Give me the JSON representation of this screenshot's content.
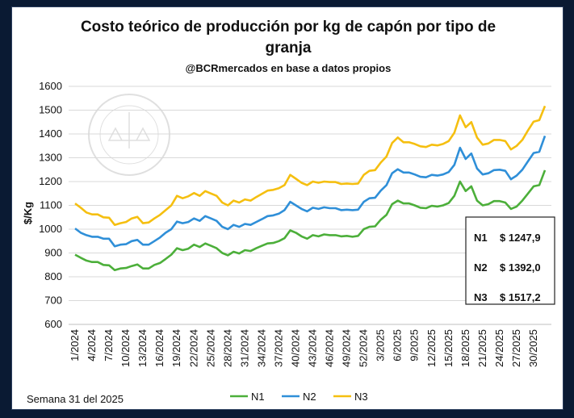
{
  "chart_data": {
    "type": "line",
    "title_line1": "Costo teórico de producción por kg de capón por tipo de",
    "title_line2": "granja",
    "subtitle": "@BCRmercados en base a datos propios",
    "ylabel": "$/Kg",
    "ylim": [
      600,
      1600
    ],
    "yticks": [
      600,
      700,
      800,
      900,
      1000,
      1100,
      1200,
      1300,
      1400,
      1500,
      1600
    ],
    "grid": true,
    "legend_position": "bottom",
    "x_tick_labels": [
      "1/2024",
      "4/2024",
      "7/2024",
      "10/2024",
      "13/2024",
      "16/2024",
      "19/2024",
      "22/2024",
      "25/2024",
      "28/2024",
      "31/2024",
      "34/2024",
      "37/2024",
      "40/2024",
      "43/2024",
      "46/2024",
      "49/2024",
      "52/2024",
      "3/2025",
      "6/2025",
      "9/2025",
      "12/2025",
      "15/2025",
      "18/2025",
      "21/2025",
      "24/2025",
      "27/2025",
      "30/2025"
    ],
    "series": [
      {
        "name": "N1",
        "color": "#4caf3a",
        "values": [
          893,
          880,
          868,
          862,
          862,
          850,
          848,
          828,
          835,
          837,
          845,
          852,
          835,
          835,
          850,
          858,
          875,
          893,
          920,
          912,
          918,
          935,
          925,
          940,
          930,
          920,
          900,
          890,
          905,
          898,
          912,
          908,
          920,
          930,
          940,
          942,
          950,
          962,
          995,
          985,
          970,
          960,
          975,
          970,
          978,
          975,
          975,
          970,
          972,
          968,
          972,
          1000,
          1010,
          1012,
          1040,
          1060,
          1105,
          1120,
          1108,
          1108,
          1100,
          1090,
          1088,
          1098,
          1095,
          1100,
          1110,
          1140,
          1200,
          1160,
          1180,
          1120,
          1100,
          1105,
          1118,
          1118,
          1112,
          1085,
          1095,
          1120,
          1150,
          1180,
          1185,
          1247.9
        ]
      },
      {
        "name": "N2",
        "color": "#2f8fd8",
        "values": [
          1003,
          985,
          975,
          968,
          968,
          960,
          960,
          928,
          935,
          937,
          950,
          955,
          935,
          935,
          950,
          965,
          985,
          1000,
          1032,
          1025,
          1030,
          1045,
          1035,
          1055,
          1045,
          1035,
          1010,
          1000,
          1018,
          1010,
          1022,
          1018,
          1030,
          1042,
          1055,
          1058,
          1065,
          1080,
          1115,
          1100,
          1085,
          1075,
          1090,
          1085,
          1092,
          1088,
          1088,
          1080,
          1082,
          1080,
          1082,
          1115,
          1130,
          1132,
          1162,
          1185,
          1235,
          1252,
          1238,
          1238,
          1230,
          1220,
          1218,
          1228,
          1225,
          1230,
          1240,
          1270,
          1342,
          1295,
          1318,
          1255,
          1230,
          1235,
          1248,
          1250,
          1245,
          1210,
          1225,
          1250,
          1285,
          1320,
          1325,
          1392.0
        ]
      },
      {
        "name": "N3",
        "color": "#f5bf10",
        "values": [
          1108,
          1090,
          1070,
          1062,
          1062,
          1050,
          1048,
          1018,
          1025,
          1030,
          1045,
          1052,
          1025,
          1028,
          1045,
          1060,
          1080,
          1100,
          1140,
          1130,
          1138,
          1152,
          1140,
          1160,
          1150,
          1140,
          1112,
          1100,
          1120,
          1112,
          1125,
          1120,
          1135,
          1148,
          1162,
          1165,
          1172,
          1185,
          1228,
          1212,
          1195,
          1185,
          1200,
          1195,
          1200,
          1198,
          1198,
          1190,
          1192,
          1190,
          1192,
          1228,
          1245,
          1248,
          1280,
          1305,
          1362,
          1385,
          1365,
          1365,
          1358,
          1348,
          1345,
          1355,
          1352,
          1358,
          1370,
          1405,
          1478,
          1428,
          1450,
          1385,
          1355,
          1360,
          1375,
          1375,
          1370,
          1335,
          1350,
          1375,
          1415,
          1452,
          1458,
          1517.2
        ]
      }
    ],
    "annotations": [
      {
        "series": "N1",
        "label": "N1",
        "value_text": "$ 1247,9"
      },
      {
        "series": "N2",
        "label": "N2",
        "value_text": "$ 1392,0"
      },
      {
        "series": "N3",
        "label": "N3",
        "value_text": "$ 1517,2"
      }
    ],
    "footnote": "Semana 31 del 2025"
  }
}
